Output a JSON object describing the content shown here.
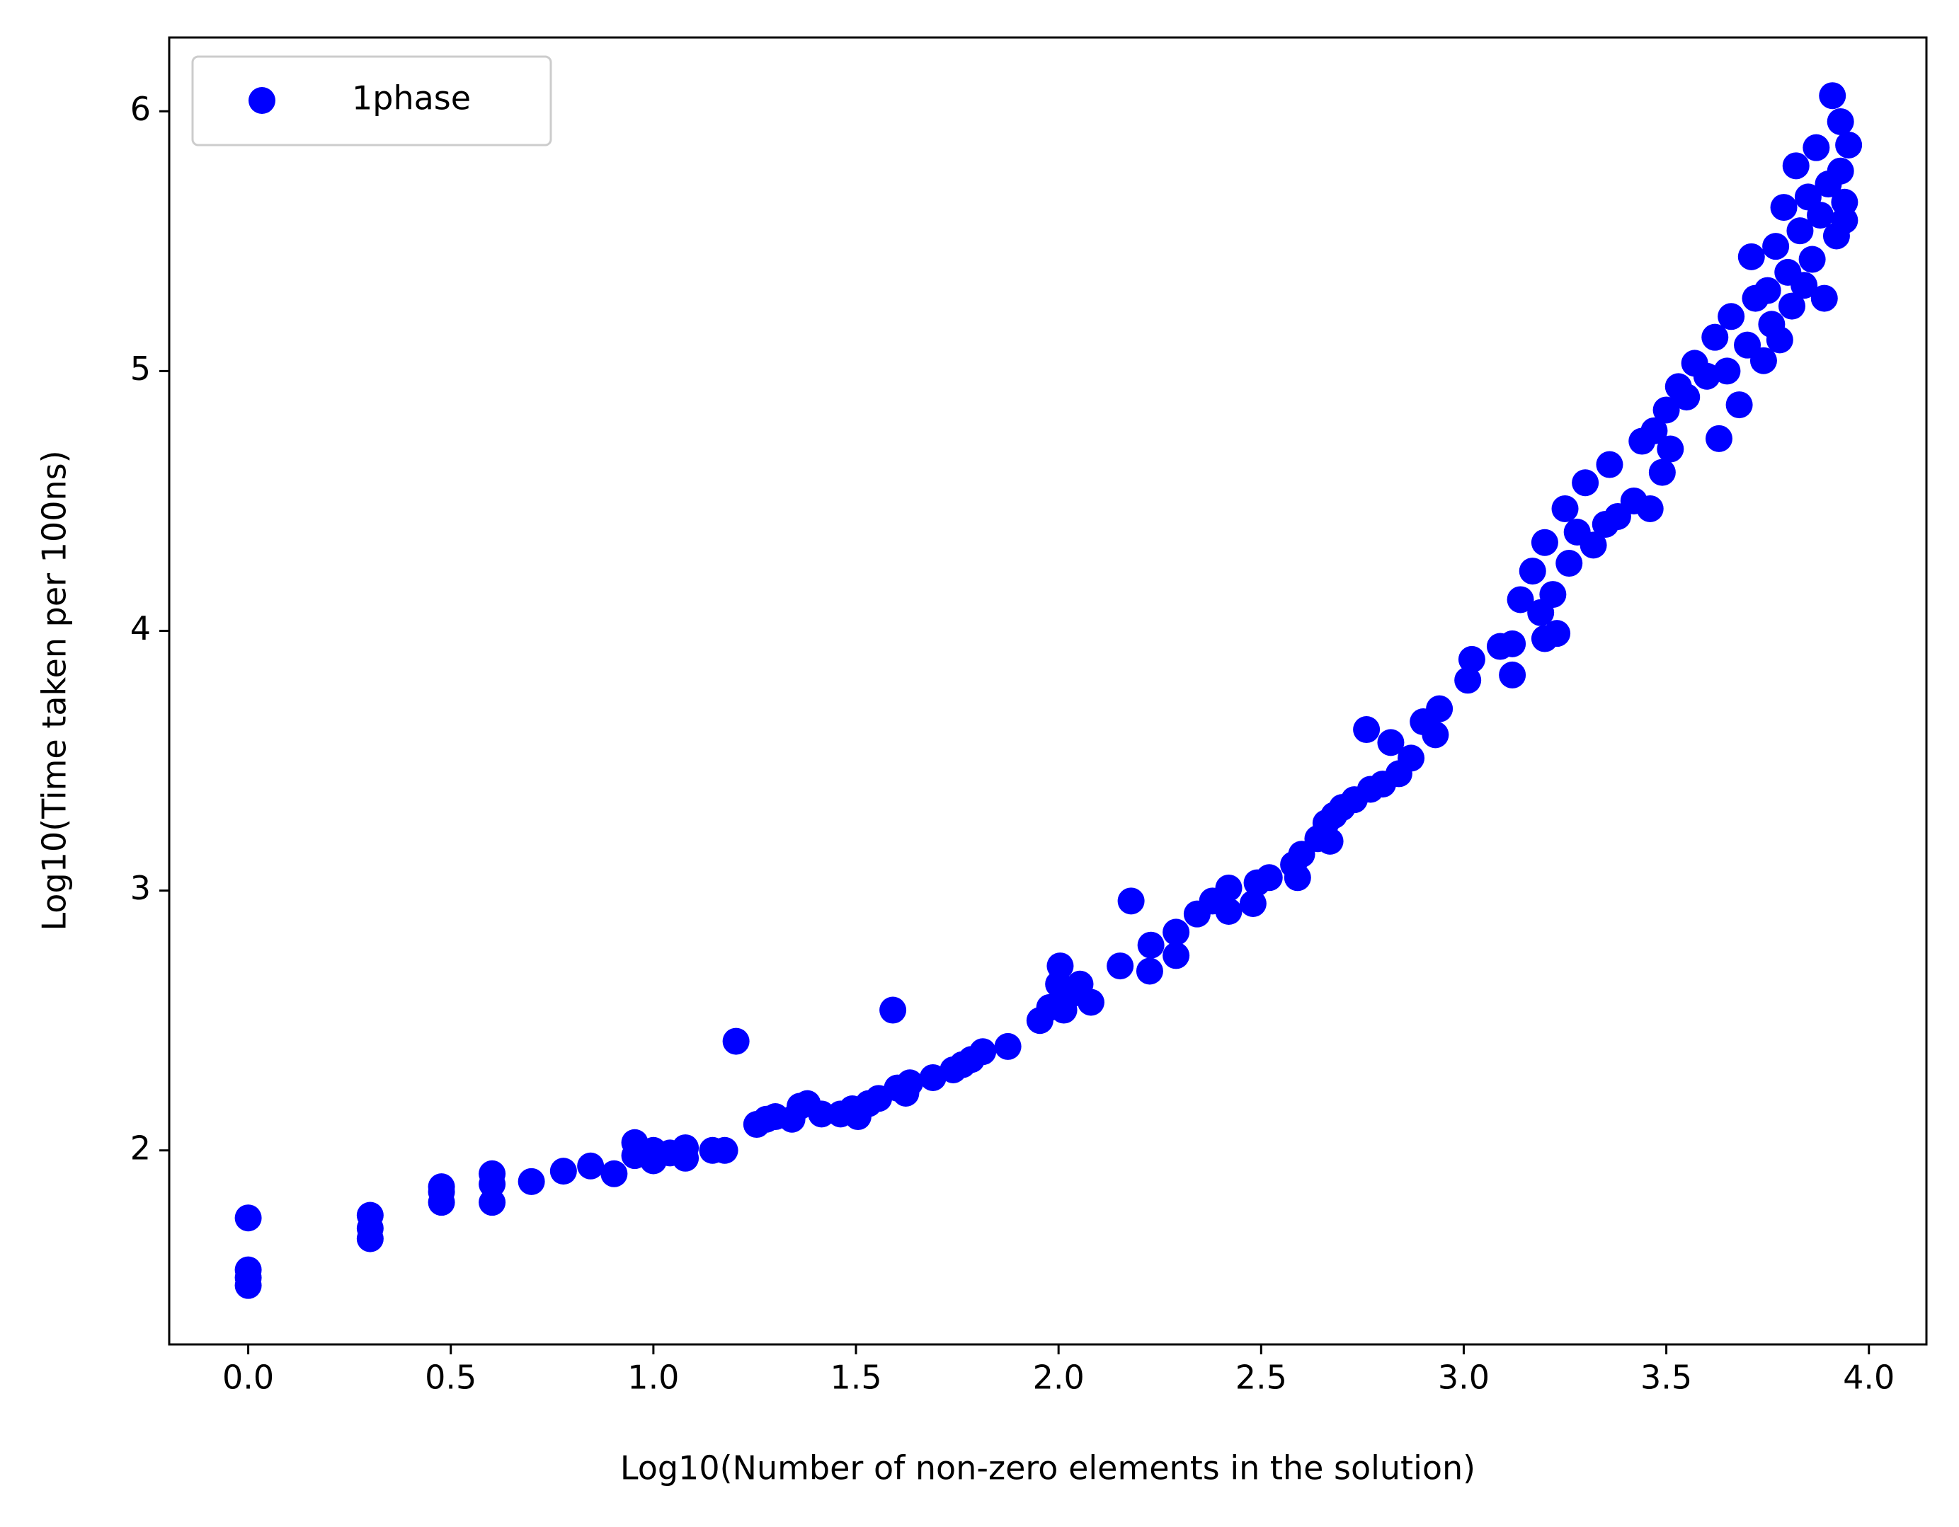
{
  "chart_data": {
    "type": "scatter",
    "xlabel": "Log10(Number of non-zero elements in the solution)",
    "ylabel": "Log10(Time taken per 100ns)",
    "legend": "upper left",
    "xlim": [
      -0.195,
      4.142
    ],
    "ylim": [
      1.253,
      6.284
    ],
    "xticks": [
      {
        "value": 0,
        "label": "0.0"
      },
      {
        "value": 0.5,
        "label": "0.5"
      },
      {
        "value": 1,
        "label": "1.0"
      },
      {
        "value": 1.5,
        "label": "1.5"
      },
      {
        "value": 2,
        "label": "2.0"
      },
      {
        "value": 2.5,
        "label": "2.5"
      },
      {
        "value": 3,
        "label": "3.0"
      },
      {
        "value": 3.5,
        "label": "3.5"
      },
      {
        "value": 4,
        "label": "4.0"
      }
    ],
    "yticks": [
      2,
      3,
      4,
      5,
      6
    ],
    "series": [
      {
        "name": "1phase",
        "color": "#0000ff",
        "x": [
          0,
          0,
          0,
          0,
          0.301,
          0.301,
          0.301,
          0.477,
          0.477,
          0.477,
          0.602,
          0.602,
          0.602,
          0.699,
          0.778,
          0.845,
          0.903,
          0.954,
          0.954,
          1.0,
          1.0,
          1.041,
          1.079,
          1.079,
          1.146,
          1.176,
          1.204,
          1.255,
          1.279,
          1.301,
          1.342,
          1.362,
          1.38,
          1.415,
          1.462,
          1.491,
          1.505,
          1.531,
          1.556,
          1.591,
          1.602,
          1.623,
          1.633,
          1.69,
          1.74,
          1.763,
          1.785,
          1.813,
          1.875,
          1.954,
          1.978,
          2.0,
          2.004,
          2.013,
          2.03,
          2.053,
          2.08,
          2.152,
          2.179,
          2.225,
          2.228,
          2.29,
          2.29,
          2.342,
          2.38,
          2.42,
          2.42,
          2.48,
          2.49,
          2.52,
          2.58,
          2.59,
          2.6,
          2.64,
          2.66,
          2.67,
          2.68,
          2.7,
          2.73,
          2.76,
          2.77,
          2.8,
          2.82,
          2.84,
          2.87,
          2.9,
          2.93,
          2.94,
          3.01,
          3.02,
          3.09,
          3.12,
          3.12,
          3.14,
          3.17,
          3.19,
          3.2,
          3.2,
          3.22,
          3.23,
          3.25,
          3.26,
          3.28,
          3.3,
          3.32,
          3.35,
          3.36,
          3.38,
          3.42,
          3.44,
          3.46,
          3.47,
          3.49,
          3.5,
          3.51,
          3.53,
          3.55,
          3.57,
          3.6,
          3.62,
          3.63,
          3.65,
          3.66,
          3.68,
          3.7,
          3.71,
          3.72,
          3.74,
          3.75,
          3.76,
          3.77,
          3.78,
          3.79,
          3.8,
          3.81,
          3.82,
          3.83,
          3.84,
          3.85,
          3.86,
          3.87,
          3.88,
          3.89,
          3.9,
          3.91,
          3.92,
          3.93,
          3.94,
          3.95,
          3.93,
          3.94
        ],
        "values": [
          1.74,
          1.54,
          1.51,
          1.48,
          1.75,
          1.7,
          1.66,
          1.86,
          1.84,
          1.8,
          1.91,
          1.87,
          1.8,
          1.88,
          1.92,
          1.94,
          1.91,
          2.03,
          1.98,
          2.0,
          1.96,
          1.99,
          2.01,
          1.97,
          2.0,
          2.0,
          2.42,
          2.1,
          2.12,
          2.13,
          2.12,
          2.17,
          2.18,
          2.14,
          2.14,
          2.16,
          2.13,
          2.18,
          2.2,
          2.54,
          2.24,
          2.22,
          2.26,
          2.28,
          2.31,
          2.33,
          2.35,
          2.38,
          2.4,
          2.5,
          2.55,
          2.64,
          2.71,
          2.54,
          2.6,
          2.64,
          2.57,
          2.71,
          2.96,
          2.69,
          2.79,
          2.75,
          2.84,
          2.91,
          2.96,
          3.01,
          2.92,
          2.95,
          3.03,
          3.05,
          3.1,
          3.05,
          3.14,
          3.2,
          3.26,
          3.19,
          3.29,
          3.32,
          3.35,
          3.62,
          3.39,
          3.41,
          3.57,
          3.45,
          3.51,
          3.65,
          3.6,
          3.7,
          3.81,
          3.89,
          3.94,
          3.95,
          3.83,
          4.12,
          4.23,
          4.07,
          4.34,
          3.97,
          4.14,
          3.99,
          4.47,
          4.26,
          4.38,
          4.57,
          4.33,
          4.41,
          4.64,
          4.44,
          4.5,
          4.73,
          4.47,
          4.77,
          4.61,
          4.85,
          4.7,
          4.94,
          4.9,
          5.03,
          4.98,
          5.13,
          4.74,
          5.0,
          5.21,
          4.87,
          5.1,
          5.44,
          5.28,
          5.04,
          5.31,
          5.18,
          5.48,
          5.12,
          5.63,
          5.38,
          5.25,
          5.79,
          5.54,
          5.33,
          5.67,
          5.43,
          5.86,
          5.6,
          5.28,
          5.72,
          6.06,
          5.52,
          5.96,
          5.65,
          5.87,
          5.77,
          5.58
        ]
      }
    ]
  }
}
